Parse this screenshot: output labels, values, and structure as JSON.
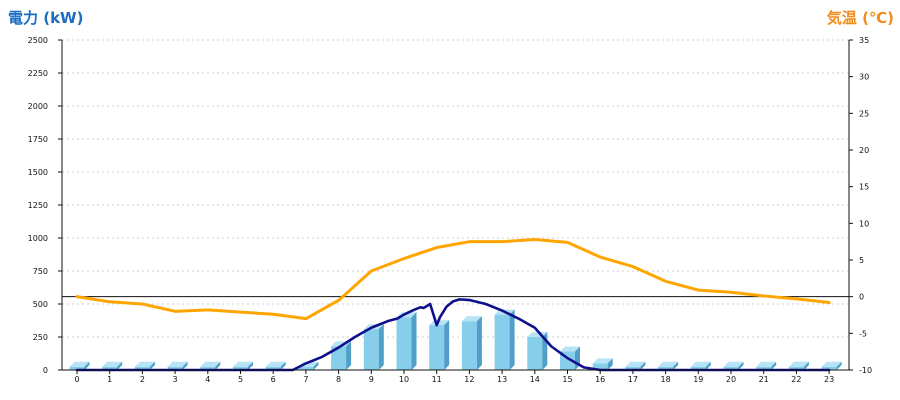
{
  "chart_data": {
    "type": "bar",
    "title": "",
    "x": [
      "0",
      "1",
      "2",
      "3",
      "4",
      "5",
      "6",
      "7",
      "8",
      "9",
      "10",
      "11",
      "12",
      "13",
      "14",
      "15",
      "16",
      "17",
      "18",
      "19",
      "20",
      "21",
      "22",
      "23"
    ],
    "ylabel_left": "電力 (kW)",
    "ylabel_right": "気温 (℃)",
    "ylim_left": [
      0,
      2500
    ],
    "ylim_right": [
      -10,
      35
    ],
    "yticks_left": [
      0,
      250,
      500,
      750,
      1000,
      1250,
      1500,
      1750,
      2000,
      2250,
      2500
    ],
    "yticks_right": [
      -10,
      -5,
      0,
      5,
      10,
      15,
      20,
      25,
      30,
      35
    ],
    "grid": true,
    "reference_line_right": 0,
    "bar_values": [
      25,
      25,
      25,
      25,
      25,
      25,
      25,
      25,
      180,
      310,
      400,
      340,
      370,
      420,
      250,
      140,
      50,
      25,
      25,
      25,
      25,
      25,
      25,
      25
    ],
    "power_line": {
      "x": [
        0,
        6,
        6.6,
        7,
        7.5,
        8,
        8.5,
        9,
        9.5,
        9.8,
        10,
        10.3,
        10.5,
        10.6,
        10.8,
        11,
        11.1,
        11.3,
        11.5,
        11.7,
        12,
        12.5,
        13,
        13.5,
        14,
        14.5,
        15,
        15.5,
        16,
        17,
        18,
        19,
        20,
        21,
        22,
        23
      ],
      "y": [
        0,
        0,
        0,
        50,
        100,
        170,
        250,
        320,
        370,
        390,
        420,
        455,
        475,
        470,
        500,
        340,
        400,
        480,
        520,
        535,
        530,
        500,
        450,
        390,
        320,
        180,
        90,
        20,
        0,
        0,
        0,
        0,
        0,
        0,
        0,
        0
      ]
    },
    "temperature_line": {
      "x": [
        0,
        1,
        2,
        3,
        4,
        5,
        6,
        7,
        8,
        9,
        10,
        11,
        12,
        13,
        14,
        15,
        16,
        17,
        18,
        19,
        20,
        21,
        22,
        23
      ],
      "y": [
        0,
        -0.7,
        -1,
        -2,
        -1.8,
        -2.1,
        -2.4,
        -3,
        -0.5,
        3.5,
        5.2,
        6.7,
        7.5,
        7.5,
        7.8,
        7.4,
        5.4,
        4.1,
        2.1,
        0.9,
        0.6,
        0.1,
        -0.3,
        -0.8
      ]
    },
    "colors": {
      "power_axis_title": "#1b6dc1",
      "temperature_axis_title": "#f08c1a",
      "bar_front": "#87ceeb",
      "bar_side": "#4f9fc8",
      "bar_top": "#b8e4f7",
      "power_line": "#10108c",
      "temperature_line": "#ffa500",
      "grid": "#cfcfcf",
      "axis": "#111111"
    }
  }
}
